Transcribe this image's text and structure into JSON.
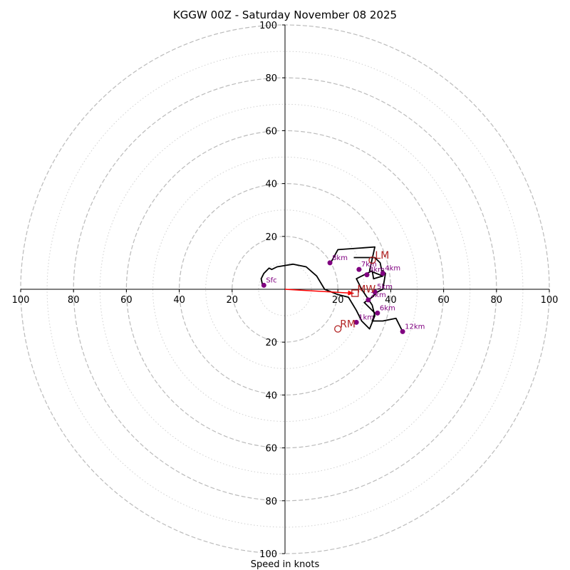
{
  "chart_data": {
    "type": "hodograph",
    "title": "KGGW 00Z - Saturday November 08 2025",
    "xlabel": "Speed in knots",
    "range": 100,
    "major_rings": [
      20,
      40,
      60,
      80,
      100
    ],
    "minor_rings": [
      10,
      30,
      50,
      70,
      90
    ],
    "x_tick_labels": [
      "100",
      "80",
      "60",
      "40",
      "20",
      "20",
      "40",
      "60",
      "80",
      "100"
    ],
    "x_tick_values": [
      -100,
      -80,
      -60,
      -40,
      -20,
      20,
      40,
      60,
      80,
      100
    ],
    "y_tick_labels": [
      "100",
      "80",
      "60",
      "40",
      "20",
      "20",
      "40",
      "60",
      "80",
      "100"
    ],
    "y_tick_values": [
      100,
      80,
      60,
      40,
      20,
      -20,
      -40,
      -60,
      -80,
      -100
    ],
    "trace": [
      [
        -8.5,
        1.5
      ],
      [
        -9,
        4
      ],
      [
        -8,
        6
      ],
      [
        -6,
        8
      ],
      [
        -5,
        7.5
      ],
      [
        -3,
        8.5
      ],
      [
        0,
        9
      ],
      [
        3,
        9.5
      ],
      [
        8,
        8.5
      ],
      [
        12,
        5
      ],
      [
        15,
        0
      ],
      [
        20,
        -2
      ],
      [
        24,
        -3
      ],
      [
        27,
        -8
      ],
      [
        29,
        -12
      ],
      [
        32,
        -15
      ],
      [
        34,
        -10
      ],
      [
        33,
        -6
      ],
      [
        31,
        -3
      ],
      [
        29,
        0
      ],
      [
        27,
        4
      ],
      [
        33,
        7
      ],
      [
        33.5,
        4
      ],
      [
        37,
        5
      ],
      [
        37,
        7
      ],
      [
        38,
        6
      ],
      [
        37,
        0
      ],
      [
        35,
        -1
      ],
      [
        33,
        -3
      ],
      [
        30,
        -5
      ],
      [
        34,
        -9
      ],
      [
        33,
        -12
      ],
      [
        37,
        -12
      ],
      [
        42,
        -11
      ],
      [
        44.5,
        -16
      ]
    ],
    "trace_upper": [
      [
        17,
        9.5
      ],
      [
        20,
        15
      ],
      [
        34,
        16
      ],
      [
        32,
        7
      ],
      [
        37,
        5
      ],
      [
        36,
        10
      ],
      [
        34,
        12
      ],
      [
        26,
        12
      ]
    ],
    "height_markers": [
      {
        "label": "Sfc",
        "u": -8,
        "v": 1.5
      },
      {
        "label": "1km",
        "u": 27,
        "v": -12.5
      },
      {
        "label": "2km",
        "u": 31.5,
        "v": -4
      },
      {
        "label": "3km",
        "u": 31,
        "v": 5.5
      },
      {
        "label": "4km",
        "u": 37,
        "v": 6
      },
      {
        "label": "5km",
        "u": 34,
        "v": -1
      },
      {
        "label": "6km",
        "u": 35,
        "v": -9
      },
      {
        "label": "7km",
        "u": 28,
        "v": 7.5
      },
      {
        "label": "8km",
        "u": 17,
        "v": 10
      },
      {
        "label": "12km",
        "u": 44.5,
        "v": -16
      }
    ],
    "storm_motion": {
      "LM": {
        "label": "LM",
        "u": 33,
        "v": 11
      },
      "RM": {
        "label": "RM",
        "u": 20,
        "v": -15
      },
      "MW": {
        "label": "MW",
        "u": 26.5,
        "v": -1.5
      }
    },
    "shear_vector": {
      "u": 26,
      "v": -1.5
    },
    "colors": {
      "trace": "#000000",
      "markers": "#800080",
      "storm": "#b22222",
      "shear": "#ff0000",
      "major_ring": "#bbbbbb",
      "minor_ring": "#d0d0d0"
    }
  }
}
